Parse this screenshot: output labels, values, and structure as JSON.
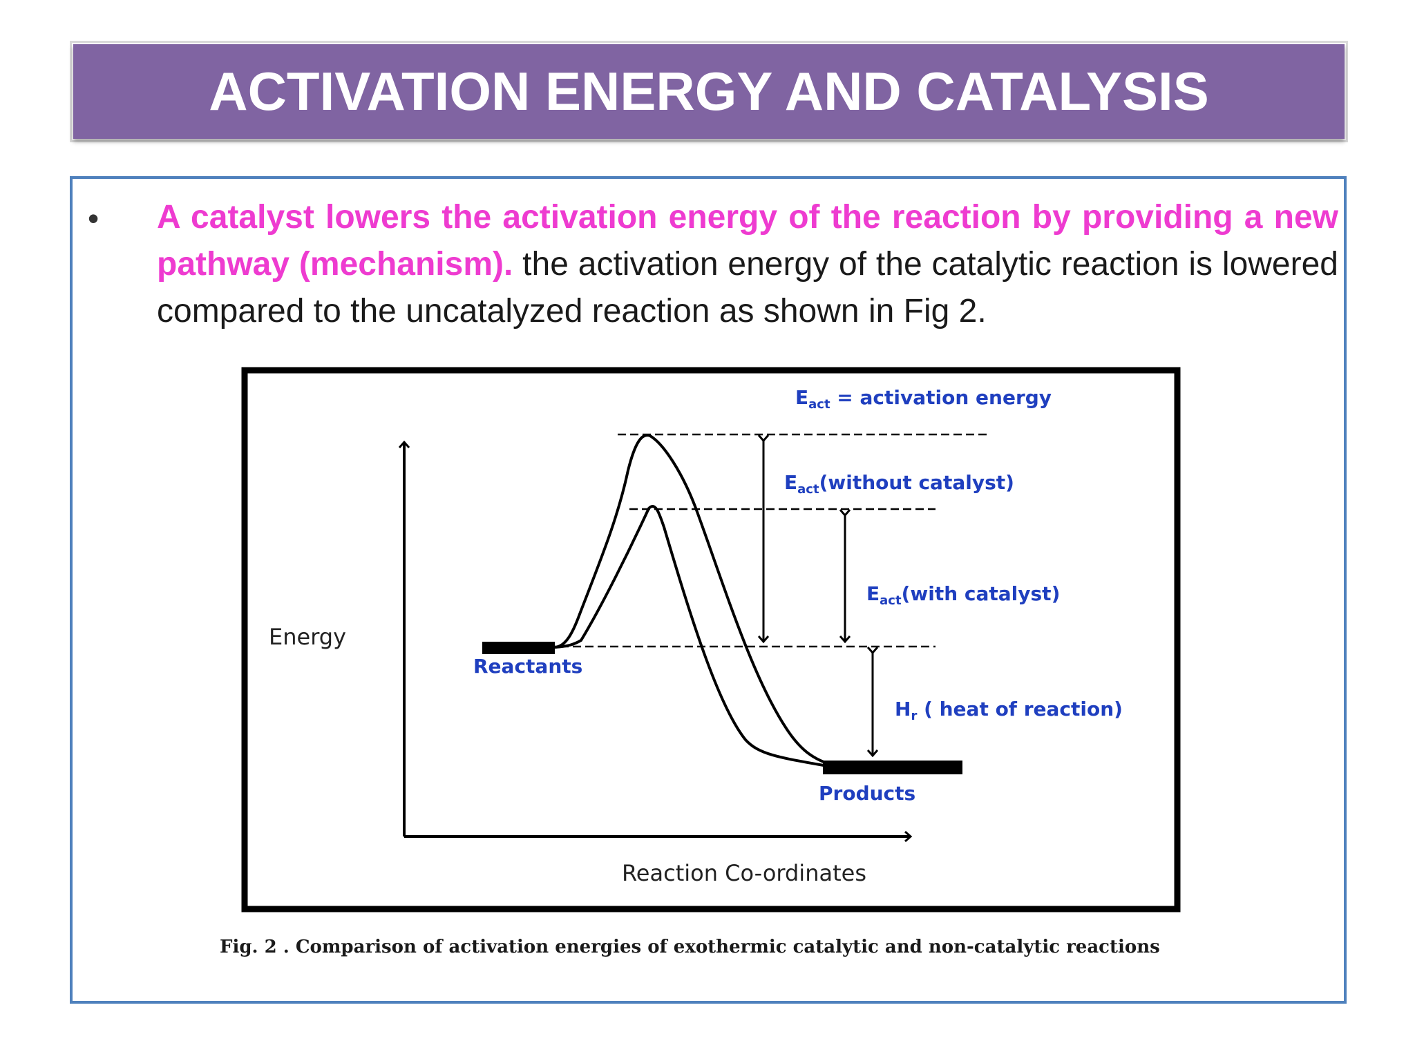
{
  "slide": {
    "title": "ACTIVATION ENERGY AND CATALYSIS",
    "bullet_symbol": "•",
    "bullet_emphasis": "A catalyst lowers the activation energy of the reaction by providing a new pathway (mechanism).",
    "bullet_rest": " the activation energy of the catalytic reaction is lowered compared to the uncatalyzed reaction as shown in Fig 2.",
    "emphasis_color": "#ee3bd0",
    "title_bar_color": "#8064a2",
    "frame_color": "#4f81bd"
  },
  "figure": {
    "legend": {
      "symbol": "E",
      "subscript": "act",
      "text": " = activation energy"
    },
    "y_axis_label": "Energy",
    "x_axis_label": "Reaction Co-ordinates",
    "reactants_label": "Reactants",
    "products_label": "Products",
    "eact_without": {
      "symbol": "E",
      "subscript": "act",
      "text": "(without catalyst)"
    },
    "eact_with": {
      "symbol": "E",
      "subscript": "act",
      "text": "(with catalyst)"
    },
    "heat": {
      "symbol": "H",
      "subscript": "r",
      "text": " ( heat of reaction)"
    },
    "label_color": "#1f3fbf",
    "caption": "Fig. 2 . Comparison of activation energies of exothermic catalytic and non-catalytic reactions"
  }
}
